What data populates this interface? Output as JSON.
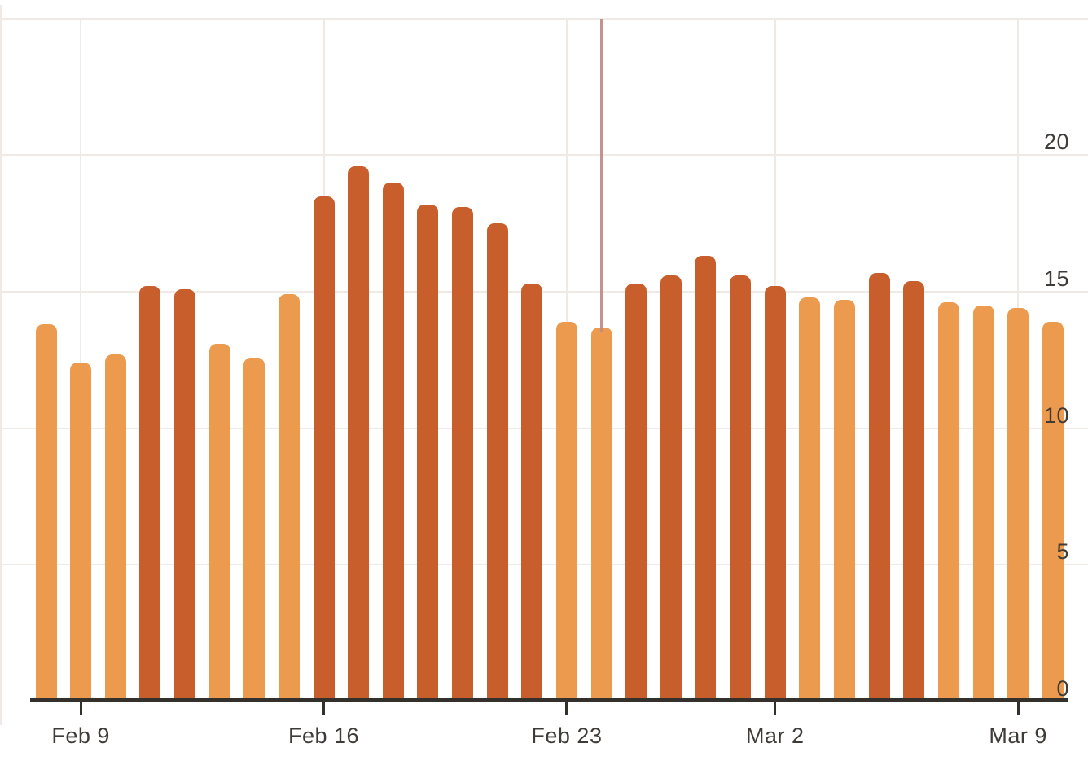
{
  "chart_data": {
    "type": "bar",
    "title": "",
    "xlabel": "",
    "ylabel": "",
    "x": [
      "Feb 8",
      "Feb 9",
      "Feb 10",
      "Feb 11",
      "Feb 12",
      "Feb 13",
      "Feb 14",
      "Feb 15",
      "Feb 16",
      "Feb 17",
      "Feb 18",
      "Feb 19",
      "Feb 20",
      "Feb 21",
      "Feb 22",
      "Feb 23",
      "Feb 24",
      "Feb 25",
      "Feb 26",
      "Feb 27",
      "Feb 28",
      "Mar 2",
      "Mar 3",
      "Mar 4",
      "Mar 5",
      "Mar 6",
      "Mar 7",
      "Mar 8",
      "Mar 9",
      "Mar 10"
    ],
    "values": [
      13.8,
      12.4,
      12.7,
      15.2,
      15.1,
      13.1,
      12.6,
      14.9,
      18.5,
      19.6,
      19.0,
      18.2,
      18.1,
      17.5,
      15.3,
      13.9,
      13.7,
      15.3,
      15.6,
      16.3,
      15.6,
      15.2,
      14.8,
      14.7,
      15.7,
      15.4,
      14.6,
      14.5,
      14.4,
      13.9
    ],
    "bar_colors": [
      "light",
      "light",
      "light",
      "dark",
      "dark",
      "light",
      "light",
      "light",
      "dark",
      "dark",
      "dark",
      "dark",
      "dark",
      "dark",
      "dark",
      "light",
      "light",
      "dark",
      "dark",
      "dark",
      "dark",
      "dark",
      "light",
      "light",
      "dark",
      "dark",
      "light",
      "light",
      "light",
      "light"
    ],
    "palette": {
      "light": "#EC9A4D",
      "dark": "#C75E2B"
    },
    "color_rule": "dark when value >= 15",
    "missing_dates": [
      "Mar 1"
    ],
    "x_tick_labels": [
      "Feb 9",
      "Feb 16",
      "Feb 23",
      "Mar 2",
      "Mar 9"
    ],
    "x_tick_bar_indices": [
      1,
      8,
      15,
      21,
      28
    ],
    "y_tick_labels": [
      "0",
      "5",
      "10",
      "15",
      "20"
    ],
    "y_tick_values": [
      0,
      5,
      10,
      15,
      20
    ],
    "ylim": [
      0,
      25
    ],
    "grid": true,
    "gridline_values": [
      5,
      10,
      15,
      20,
      25
    ],
    "legend": "none",
    "y_axis_side": "right",
    "annotation": {
      "type": "vertical_line",
      "bar_index": 16,
      "at_x": "Feb 24",
      "color": "#C08A85"
    }
  },
  "colors": {
    "background": "#FFFFFF",
    "bar_light": "#EC9A4D",
    "bar_dark": "#C75E2B",
    "gridline": "#EFEAE6",
    "axis_line": "#34302B",
    "tick_text": "#3E3B38",
    "annotation_line": "#C08A85"
  }
}
